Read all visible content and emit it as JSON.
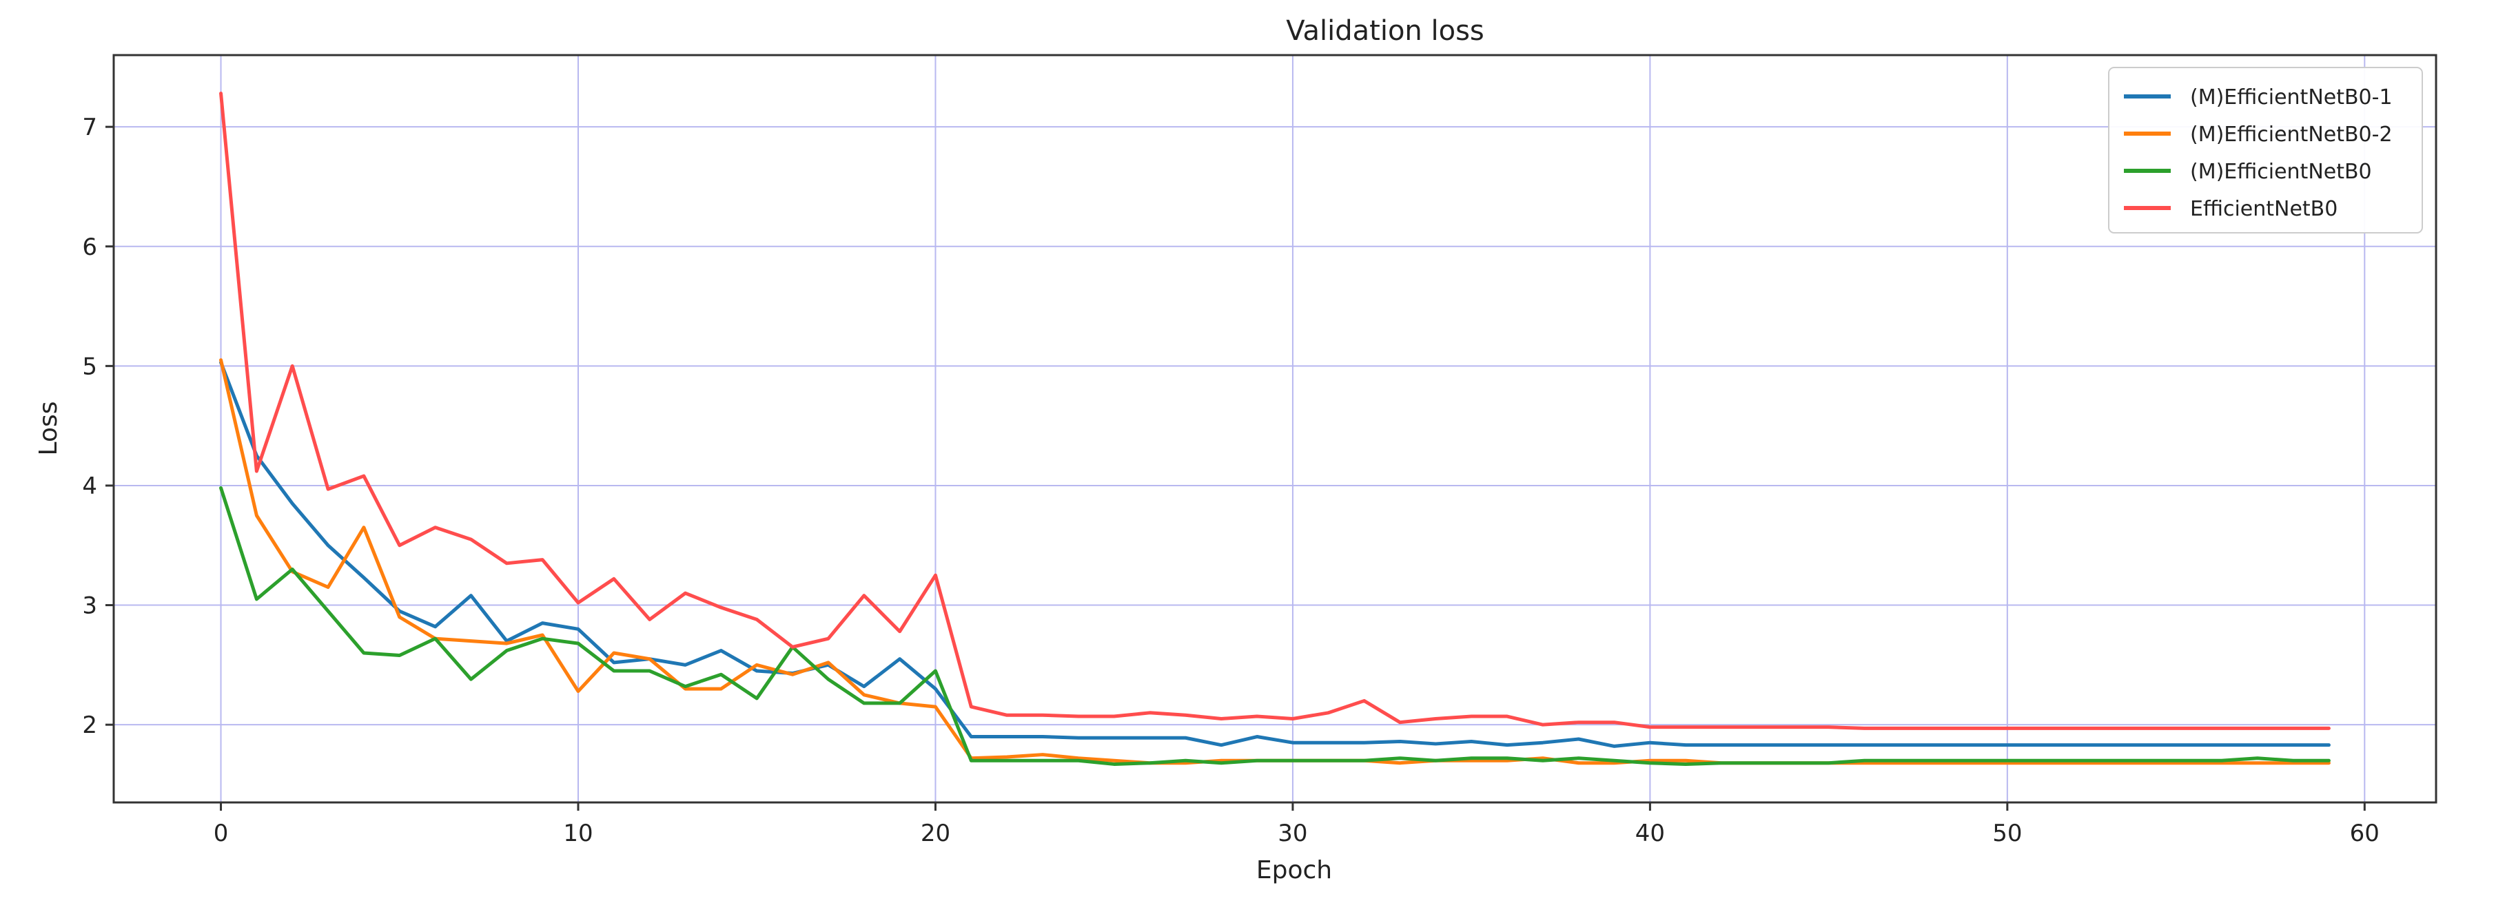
{
  "chart_data": {
    "type": "line",
    "title": "Validation loss",
    "xlabel": "Epoch",
    "ylabel": "Loss",
    "xlim": [
      -3,
      62
    ],
    "ylim": [
      1.35,
      7.6
    ],
    "xticks": [
      0,
      10,
      20,
      30,
      40,
      50,
      60
    ],
    "yticks": [
      2,
      3,
      4,
      5,
      6,
      7
    ],
    "grid": true,
    "legend_position": "top-right",
    "series": [
      {
        "name": "(M)EfficientNetB0-1",
        "color": "#1f77b4",
        "values": [
          5.03,
          4.25,
          3.85,
          3.5,
          3.23,
          2.95,
          2.82,
          3.08,
          2.7,
          2.85,
          2.8,
          2.52,
          2.55,
          2.5,
          2.62,
          2.45,
          2.43,
          2.5,
          2.32,
          2.55,
          2.3,
          1.9,
          1.9,
          1.9,
          1.89,
          1.89,
          1.89,
          1.89,
          1.83,
          1.9,
          1.85,
          1.85,
          1.85,
          1.86,
          1.84,
          1.86,
          1.83,
          1.85,
          1.88,
          1.82,
          1.85,
          1.83,
          1.83,
          1.83,
          1.83,
          1.83,
          1.83,
          1.83,
          1.83,
          1.83,
          1.83,
          1.83,
          1.83,
          1.83,
          1.83,
          1.83,
          1.83,
          1.83,
          1.83,
          1.83
        ]
      },
      {
        "name": "(M)EfficientNetB0-2",
        "color": "#ff7f0e",
        "values": [
          5.05,
          3.75,
          3.28,
          3.15,
          3.65,
          2.9,
          2.72,
          2.7,
          2.68,
          2.75,
          2.28,
          2.6,
          2.55,
          2.3,
          2.3,
          2.5,
          2.42,
          2.52,
          2.25,
          2.18,
          2.15,
          1.72,
          1.73,
          1.75,
          1.72,
          1.7,
          1.68,
          1.68,
          1.7,
          1.7,
          1.7,
          1.7,
          1.7,
          1.68,
          1.7,
          1.7,
          1.7,
          1.72,
          1.68,
          1.68,
          1.7,
          1.7,
          1.68,
          1.68,
          1.68,
          1.68,
          1.68,
          1.68,
          1.68,
          1.68,
          1.68,
          1.68,
          1.68,
          1.68,
          1.68,
          1.68,
          1.68,
          1.68,
          1.68,
          1.68
        ]
      },
      {
        "name": "(M)EfficientNetB0",
        "color": "#2ca02c",
        "values": [
          3.98,
          3.05,
          3.3,
          2.95,
          2.6,
          2.58,
          2.72,
          2.38,
          2.62,
          2.72,
          2.68,
          2.45,
          2.45,
          2.32,
          2.42,
          2.22,
          2.65,
          2.38,
          2.18,
          2.18,
          2.45,
          1.7,
          1.7,
          1.7,
          1.7,
          1.67,
          1.68,
          1.7,
          1.68,
          1.7,
          1.7,
          1.7,
          1.7,
          1.72,
          1.7,
          1.72,
          1.72,
          1.7,
          1.72,
          1.7,
          1.68,
          1.67,
          1.68,
          1.68,
          1.68,
          1.68,
          1.7,
          1.7,
          1.7,
          1.7,
          1.7,
          1.7,
          1.7,
          1.7,
          1.7,
          1.7,
          1.7,
          1.72,
          1.7,
          1.7
        ]
      },
      {
        "name": "EfficientNetB0",
        "color": "#ff4d4d",
        "values": [
          7.28,
          4.12,
          5.0,
          3.97,
          4.08,
          3.5,
          3.65,
          3.55,
          3.35,
          3.38,
          3.02,
          3.22,
          2.88,
          3.1,
          2.98,
          2.88,
          2.65,
          2.72,
          3.08,
          2.78,
          3.25,
          2.15,
          2.08,
          2.08,
          2.07,
          2.07,
          2.1,
          2.08,
          2.05,
          2.07,
          2.05,
          2.1,
          2.2,
          2.02,
          2.05,
          2.07,
          2.07,
          2.0,
          2.02,
          2.02,
          1.98,
          1.98,
          1.98,
          1.98,
          1.98,
          1.98,
          1.97,
          1.97,
          1.97,
          1.97,
          1.97,
          1.97,
          1.97,
          1.97,
          1.97,
          1.97,
          1.97,
          1.97,
          1.97,
          1.97
        ]
      }
    ]
  }
}
